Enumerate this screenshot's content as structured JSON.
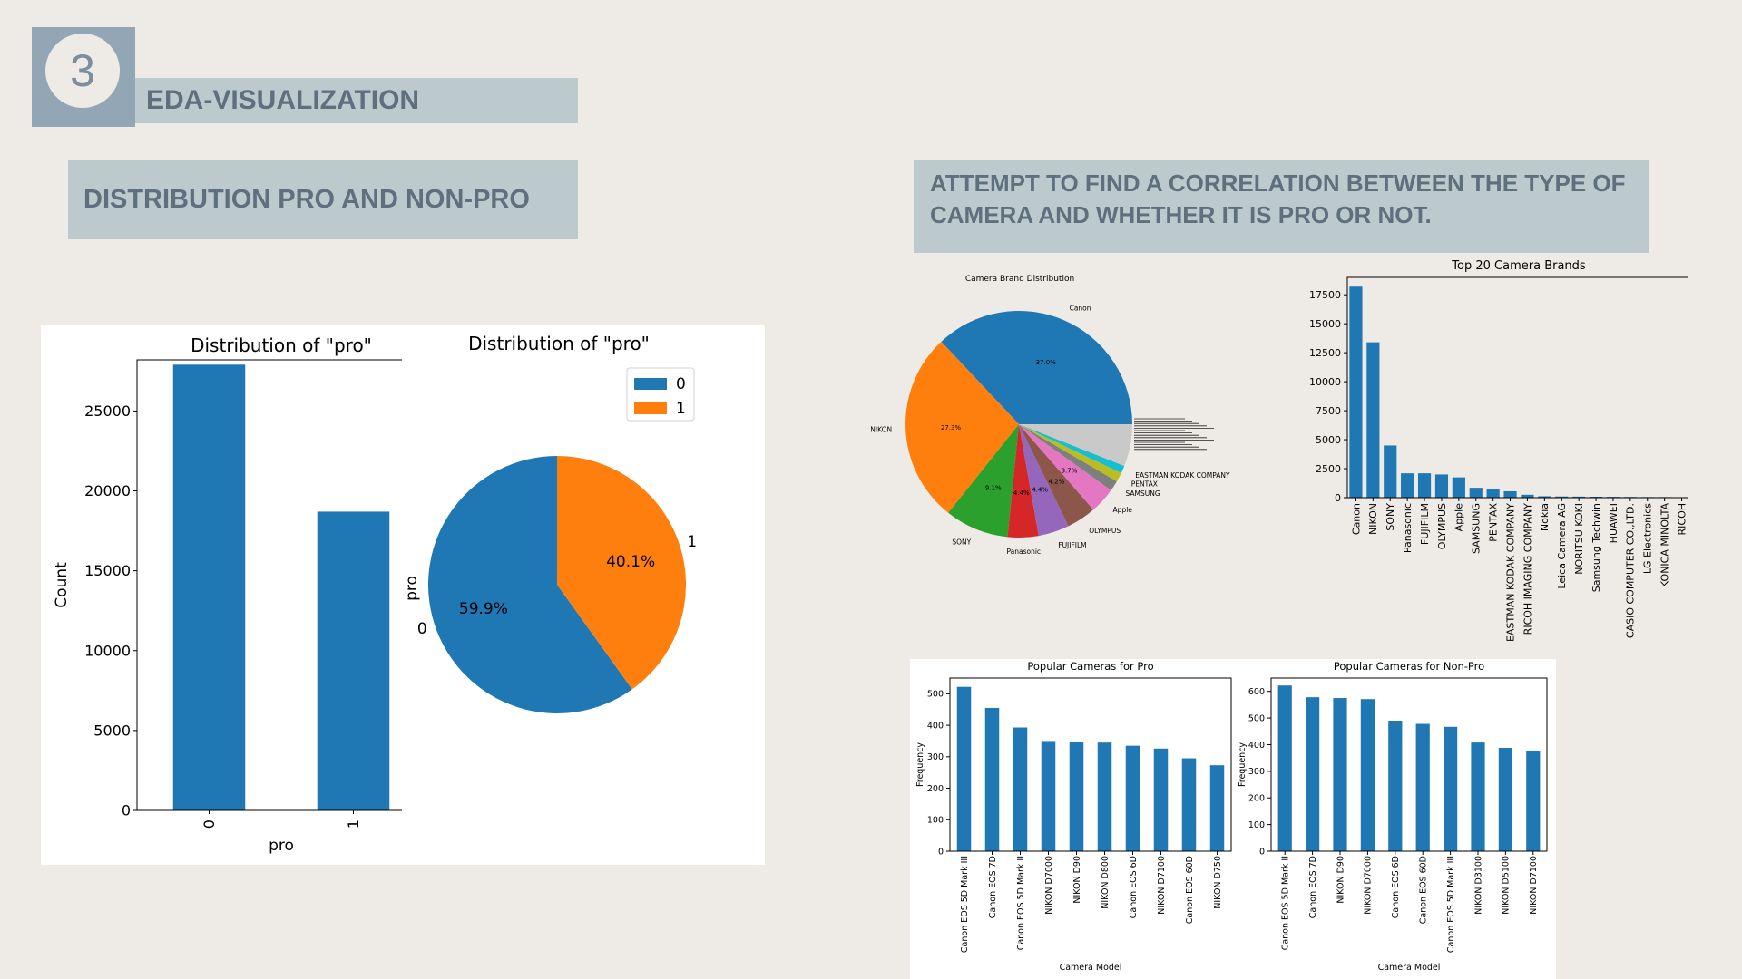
{
  "slide": {
    "number": "3",
    "section_title": "EDA-VISUALIZATION",
    "left_heading": "DISTRIBUTION PRO AND NON-PRO",
    "right_heading": "ATTEMPT TO FIND A CORRELATION BETWEEN THE TYPE OF CAMERA AND WHETHER IT IS PRO OR NOT."
  },
  "colors": {
    "blue": "#1f77b4",
    "orange": "#ff7f0e",
    "accent": "#bccace",
    "badge": "#92a6b5",
    "text": "#5f6f7e"
  },
  "chart_data": [
    {
      "id": "pro_bar",
      "type": "bar",
      "title": "Distribution of \"pro\"",
      "categories": [
        "0",
        "1"
      ],
      "values": [
        27900,
        18700
      ],
      "xlabel": "pro",
      "ylabel": "Count",
      "ylim": [
        0,
        28200
      ],
      "yticks": [
        0,
        5000,
        10000,
        15000,
        20000,
        25000
      ]
    },
    {
      "id": "pro_pie",
      "type": "pie",
      "title": "Distribution of \"pro\"",
      "labels": [
        "0",
        "1"
      ],
      "values": [
        59.9,
        40.1
      ],
      "pct_labels": [
        "59.9%",
        "40.1%"
      ],
      "ylabel": "pro",
      "legend": [
        "0",
        "1"
      ],
      "legend_position": "top-right"
    },
    {
      "id": "brand_pie",
      "type": "pie",
      "title": "Camera Brand Distribution",
      "labels": [
        "Canon",
        "NIKON",
        "SONY",
        "Panasonic",
        "FUJIFILM",
        "OLYMPUS",
        "Apple",
        "SAMSUNG",
        "PENTAX",
        "EASTMAN KODAK COMPANY"
      ],
      "values": [
        37.0,
        27.3,
        9.1,
        4.4,
        4.4,
        4.2,
        3.7,
        1.5,
        1.3,
        1.1
      ],
      "pct_labels": [
        "37.0%",
        "27.3%",
        "9.1%",
        "4.4%",
        "4.4%",
        "4.2%",
        "3.7%",
        "",
        "",
        ""
      ],
      "other_share": 6.0
    },
    {
      "id": "top20_brands",
      "type": "bar",
      "title": "Top 20 Camera Brands",
      "categories": [
        "Canon",
        "NIKON",
        "SONY",
        "Panasonic",
        "FUJIFILM",
        "OLYMPUS",
        "Apple",
        "SAMSUNG",
        "PENTAX",
        "EASTMAN KODAK COMPANY",
        "RICOH IMAGING COMPANY",
        "Nokia",
        "Leica Camera AG",
        "NORITSU KOKI",
        "Samsung Techwin",
        "HUAWEI",
        "CASIO COMPUTER CO.,LTD.",
        "LG Electronics",
        "KONICA MINOLTA",
        "RICOH"
      ],
      "values": [
        18200,
        13400,
        4500,
        2100,
        2100,
        2000,
        1750,
        850,
        700,
        550,
        250,
        120,
        100,
        90,
        80,
        70,
        60,
        50,
        50,
        40
      ],
      "ylim": [
        0,
        19000
      ],
      "yticks": [
        0,
        2500,
        5000,
        7500,
        10000,
        12500,
        15000,
        17500
      ]
    },
    {
      "id": "pro_cameras",
      "type": "bar",
      "title": "Popular Cameras for Pro",
      "categories": [
        "Canon EOS 5D Mark III",
        "Canon EOS 7D",
        "Canon EOS 5D Mark II",
        "NIKON D7000",
        "NIKON D90",
        "NIKON D800",
        "Canon EOS 6D",
        "NIKON D7100",
        "Canon EOS 60D",
        "NIKON D750"
      ],
      "values": [
        522,
        455,
        393,
        350,
        347,
        345,
        335,
        326,
        295,
        273
      ],
      "xlabel": "Camera Model",
      "ylabel": "Frequency",
      "ylim": [
        0,
        550
      ],
      "yticks": [
        0,
        100,
        200,
        300,
        400,
        500
      ]
    },
    {
      "id": "nonpro_cameras",
      "type": "bar",
      "title": "Popular Cameras for Non-Pro",
      "categories": [
        "Canon EOS 5D Mark II",
        "Canon EOS 7D",
        "NIKON D90",
        "NIKON D7000",
        "Canon EOS 6D",
        "Canon EOS 60D",
        "Canon EOS 5D Mark III",
        "NIKON D3100",
        "NIKON D5100",
        "NIKON D7100"
      ],
      "values": [
        622,
        578,
        575,
        571,
        490,
        478,
        467,
        408,
        388,
        378
      ],
      "xlabel": "Camera Model",
      "ylabel": "Frequency",
      "ylim": [
        0,
        650
      ],
      "yticks": [
        0,
        100,
        200,
        300,
        400,
        500,
        600
      ]
    }
  ]
}
